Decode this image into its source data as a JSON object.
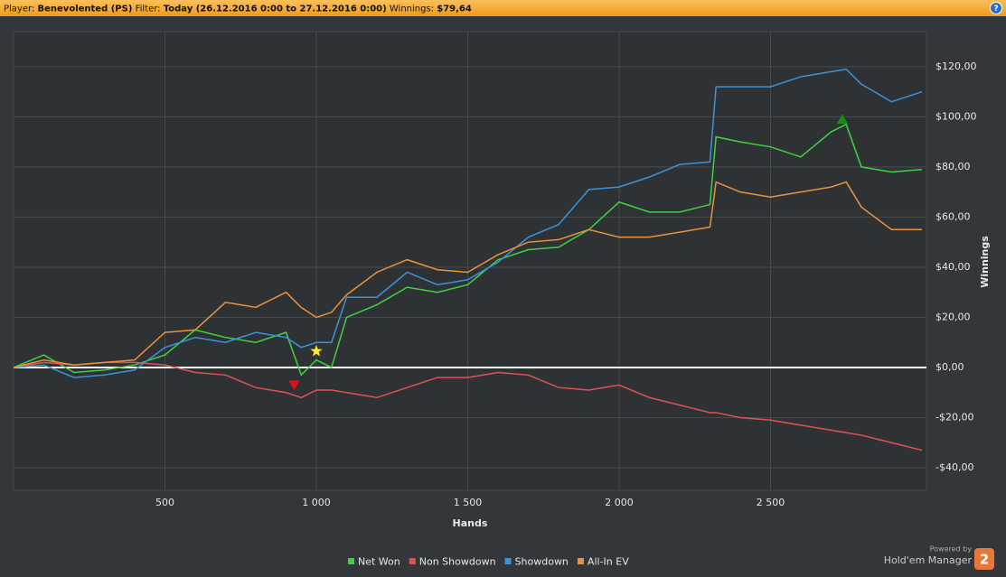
{
  "header": {
    "player_label": "Player:",
    "player": "Benevolented (PS)",
    "filter_label": "Filter:",
    "filter": "Today (26.12.2016 0:00 to 27.12.2016 0:00)",
    "winnings_label": "Winnings:",
    "winnings": "$79,64",
    "help": "?"
  },
  "footer": {
    "powered_by": "Powered by",
    "brand": "Hold'em Manager",
    "logo": "2"
  },
  "chart_data": {
    "type": "line",
    "x_label": "Hands",
    "y_label": "Winnings",
    "x": [
      0,
      100,
      200,
      300,
      400,
      500,
      600,
      700,
      800,
      900,
      950,
      1000,
      1050,
      1100,
      1200,
      1300,
      1400,
      1500,
      1600,
      1700,
      1800,
      1900,
      2000,
      2100,
      2200,
      2300,
      2320,
      2400,
      2500,
      2600,
      2700,
      2750,
      2800,
      2900,
      3000
    ],
    "series": [
      {
        "name": "Net Won",
        "color": "#3fd23f",
        "values": [
          0,
          5,
          -2,
          -1,
          1,
          5,
          15,
          12,
          10,
          14,
          -3,
          3,
          0,
          20,
          25,
          32,
          30,
          33,
          43,
          47,
          48,
          55,
          66,
          62,
          62,
          65,
          92,
          90,
          88,
          84,
          94,
          97,
          80,
          78,
          79
        ]
      },
      {
        "name": "Non Showdown",
        "color": "#e05252",
        "values": [
          0,
          2,
          1,
          2,
          2,
          1,
          -2,
          -3,
          -8,
          -10,
          -12,
          -9,
          -9,
          -10,
          -12,
          -8,
          -4,
          -4,
          -2,
          -3,
          -8,
          -9,
          -7,
          -12,
          -15,
          -18,
          -18,
          -20,
          -21,
          -23,
          -25,
          -26,
          -27,
          -30,
          -33
        ]
      },
      {
        "name": "Showdown",
        "color": "#3a93db",
        "values": [
          0,
          1,
          -4,
          -3,
          -1,
          8,
          12,
          10,
          14,
          12,
          8,
          10,
          10,
          28,
          28,
          38,
          33,
          35,
          42,
          52,
          57,
          71,
          72,
          76,
          81,
          82,
          112,
          112,
          112,
          116,
          118,
          119,
          113,
          106,
          110
        ]
      },
      {
        "name": "All-In EV",
        "color": "#e8923e",
        "values": [
          0,
          3,
          1,
          2,
          3,
          14,
          15,
          26,
          24,
          30,
          24,
          20,
          22,
          29,
          38,
          43,
          39,
          38,
          45,
          50,
          51,
          55,
          52,
          52,
          54,
          56,
          74,
          70,
          68,
          70,
          72,
          74,
          64,
          55,
          55
        ]
      }
    ],
    "markers": [
      {
        "shape": "star",
        "color": "#ffee22",
        "x": 1000,
        "y": 6.5
      },
      {
        "shape": "triangle-down",
        "color": "#e01010",
        "x": 927,
        "y": -7
      },
      {
        "shape": "triangle-up",
        "color": "#1a8a1a",
        "x": 2737,
        "y": 99
      }
    ],
    "xlim": [
      0,
      3015
    ],
    "ylim": [
      -49,
      134
    ],
    "xticks": [
      {
        "value": 500,
        "label": "500"
      },
      {
        "value": 1000,
        "label": "1 000"
      },
      {
        "value": 1500,
        "label": "1 500"
      },
      {
        "value": 2000,
        "label": "2 000"
      },
      {
        "value": 2500,
        "label": "2 500"
      }
    ],
    "yticks": [
      {
        "value": -40,
        "label": "-$40,00"
      },
      {
        "value": -20,
        "label": "-$20,00"
      },
      {
        "value": 0,
        "label": "$0,00"
      },
      {
        "value": 20,
        "label": "$20,00"
      },
      {
        "value": 40,
        "label": "$40,00"
      },
      {
        "value": 60,
        "label": "$60,00"
      },
      {
        "value": 80,
        "label": "$80,00"
      },
      {
        "value": 100,
        "label": "$100,00"
      },
      {
        "value": 120,
        "label": "$120,00"
      }
    ],
    "grid": true,
    "legend": "bottom"
  }
}
